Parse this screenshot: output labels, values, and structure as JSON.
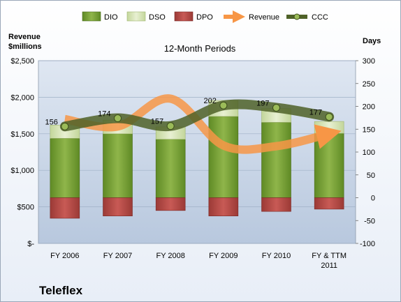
{
  "company": "Teleflex",
  "chart_data": {
    "type": "bar",
    "title": "12-Month Periods",
    "ylabel_left": "Revenue\n$millions",
    "ylabel_right": "Days",
    "categories": [
      "FY 2006",
      "FY 2007",
      "FY 2008",
      "FY 2009",
      "FY 2010",
      "FY & TTM\n2011"
    ],
    "left_axis": {
      "min": 0,
      "max": 2500,
      "ticks": [
        0,
        500,
        1000,
        1500,
        2000,
        2500
      ],
      "tick_labels": [
        "$-",
        "$500",
        "$1,000",
        "$1,500",
        "$2,000",
        "$2,500"
      ]
    },
    "right_axis": {
      "min": -100,
      "max": 300,
      "ticks": [
        -100,
        -50,
        0,
        50,
        100,
        150,
        200,
        250,
        300
      ],
      "tick_labels": [
        "-100",
        "-50",
        "0",
        "50",
        "100",
        "150",
        "200",
        "250",
        "300"
      ]
    },
    "legend": [
      "DIO",
      "DSO",
      "DPO",
      "Revenue",
      "CCC"
    ],
    "legend_position": "top",
    "series": [
      {
        "name": "DIO",
        "axis": "days",
        "values": [
          130,
          140,
          128,
          178,
          165,
          141
        ],
        "color": "#7ea63a"
      },
      {
        "name": "DSO",
        "axis": "days",
        "values": [
          29,
          30,
          27,
          35,
          30,
          26
        ],
        "color": "#d7e4b0"
      },
      {
        "name": "DPO",
        "axis": "days",
        "values": [
          -45,
          -40,
          -28,
          -40,
          -30,
          -25
        ],
        "color": "#c0504d"
      },
      {
        "name": "Revenue",
        "axis": "revenue",
        "values": [
          1700,
          1600,
          1980,
          1340,
          1330,
          1500
        ],
        "color": "#f79646"
      },
      {
        "name": "CCC",
        "axis": "days",
        "values": [
          156,
          174,
          157,
          202,
          197,
          177
        ],
        "color": "#4f6228"
      }
    ],
    "data_labels": [
      "156",
      "174",
      "157",
      "202",
      "197",
      "177"
    ],
    "grid": true
  }
}
